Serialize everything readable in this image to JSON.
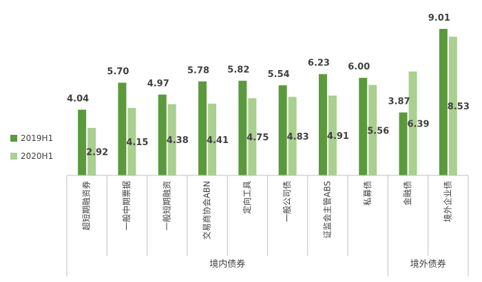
{
  "chart_data": {
    "type": "bar",
    "title": "",
    "xlabel": "",
    "ylabel": "",
    "ylim": [
      0,
      10
    ],
    "grid": false,
    "legend_position": "left",
    "categories": [
      "超短期融资券",
      "一般中期票据",
      "一般短期融资",
      "交易商协会ABN",
      "定向工具",
      "一般公司债",
      "证监会主管ABS",
      "私募债",
      "金融债",
      "境外企业债"
    ],
    "category_groups": [
      {
        "label": "境内债券",
        "start": 0,
        "end": 7
      },
      {
        "label": "境外债券",
        "start": 8,
        "end": 9
      }
    ],
    "series": [
      {
        "name": "2019H1",
        "color": "#5B9A3C",
        "values": [
          4.04,
          5.7,
          4.97,
          5.78,
          5.82,
          5.54,
          6.23,
          6.0,
          3.87,
          9.01
        ]
      },
      {
        "name": "2020H1",
        "color": "#A9D08E",
        "values": [
          2.92,
          4.15,
          4.38,
          4.41,
          4.75,
          4.83,
          4.91,
          5.56,
          6.39,
          8.53
        ]
      }
    ]
  }
}
